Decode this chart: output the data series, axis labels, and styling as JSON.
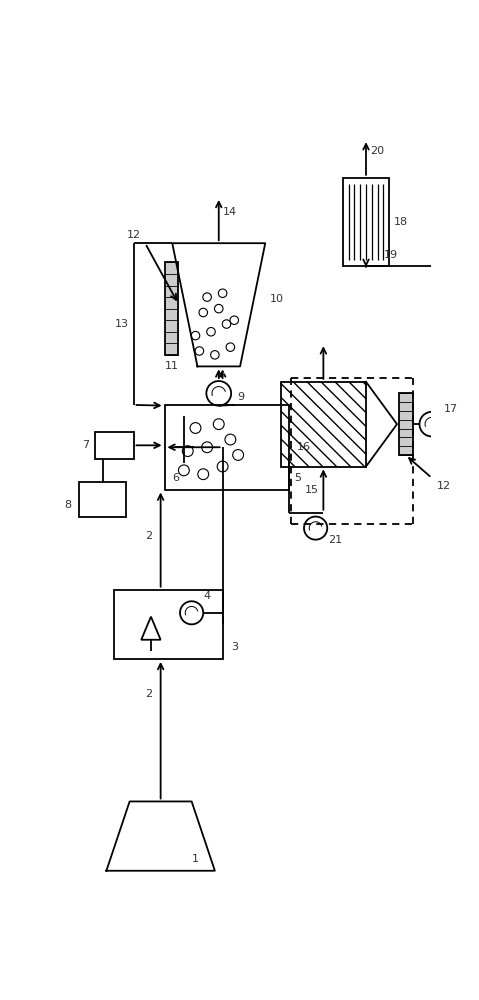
{
  "bg": "#ffffff",
  "lc": "#000000",
  "lw": 1.3,
  "figsize": [
    4.79,
    10.0
  ],
  "dpi": 100,
  "xlim": [
    0,
    47.9
  ],
  "ylim": [
    0,
    100
  ]
}
